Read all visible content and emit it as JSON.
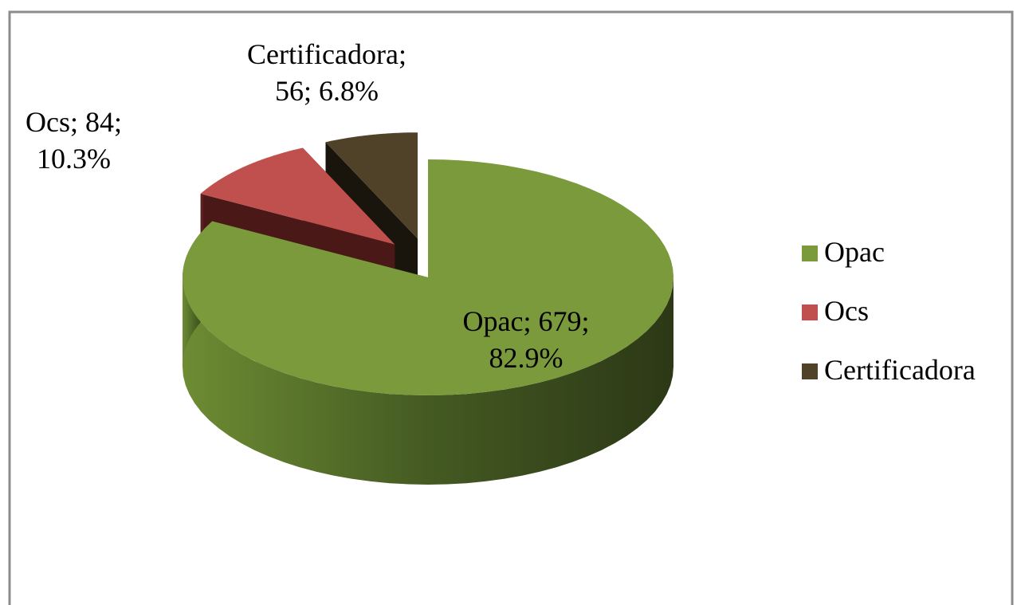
{
  "chart_data": {
    "type": "pie3d",
    "categories": [
      "Opac",
      "Ocs",
      "Certificadora"
    ],
    "values": [
      679,
      84,
      56
    ],
    "value_labels": [
      "Opac; 679; 82.9%",
      "Ocs; 84; 10.3%",
      "Certificadora; 56; 6.8%"
    ],
    "colors": [
      "#7a9a3c",
      "#c0504d",
      "#4f4228"
    ],
    "exploded": [
      false,
      true,
      true
    ],
    "legend": "right"
  }
}
